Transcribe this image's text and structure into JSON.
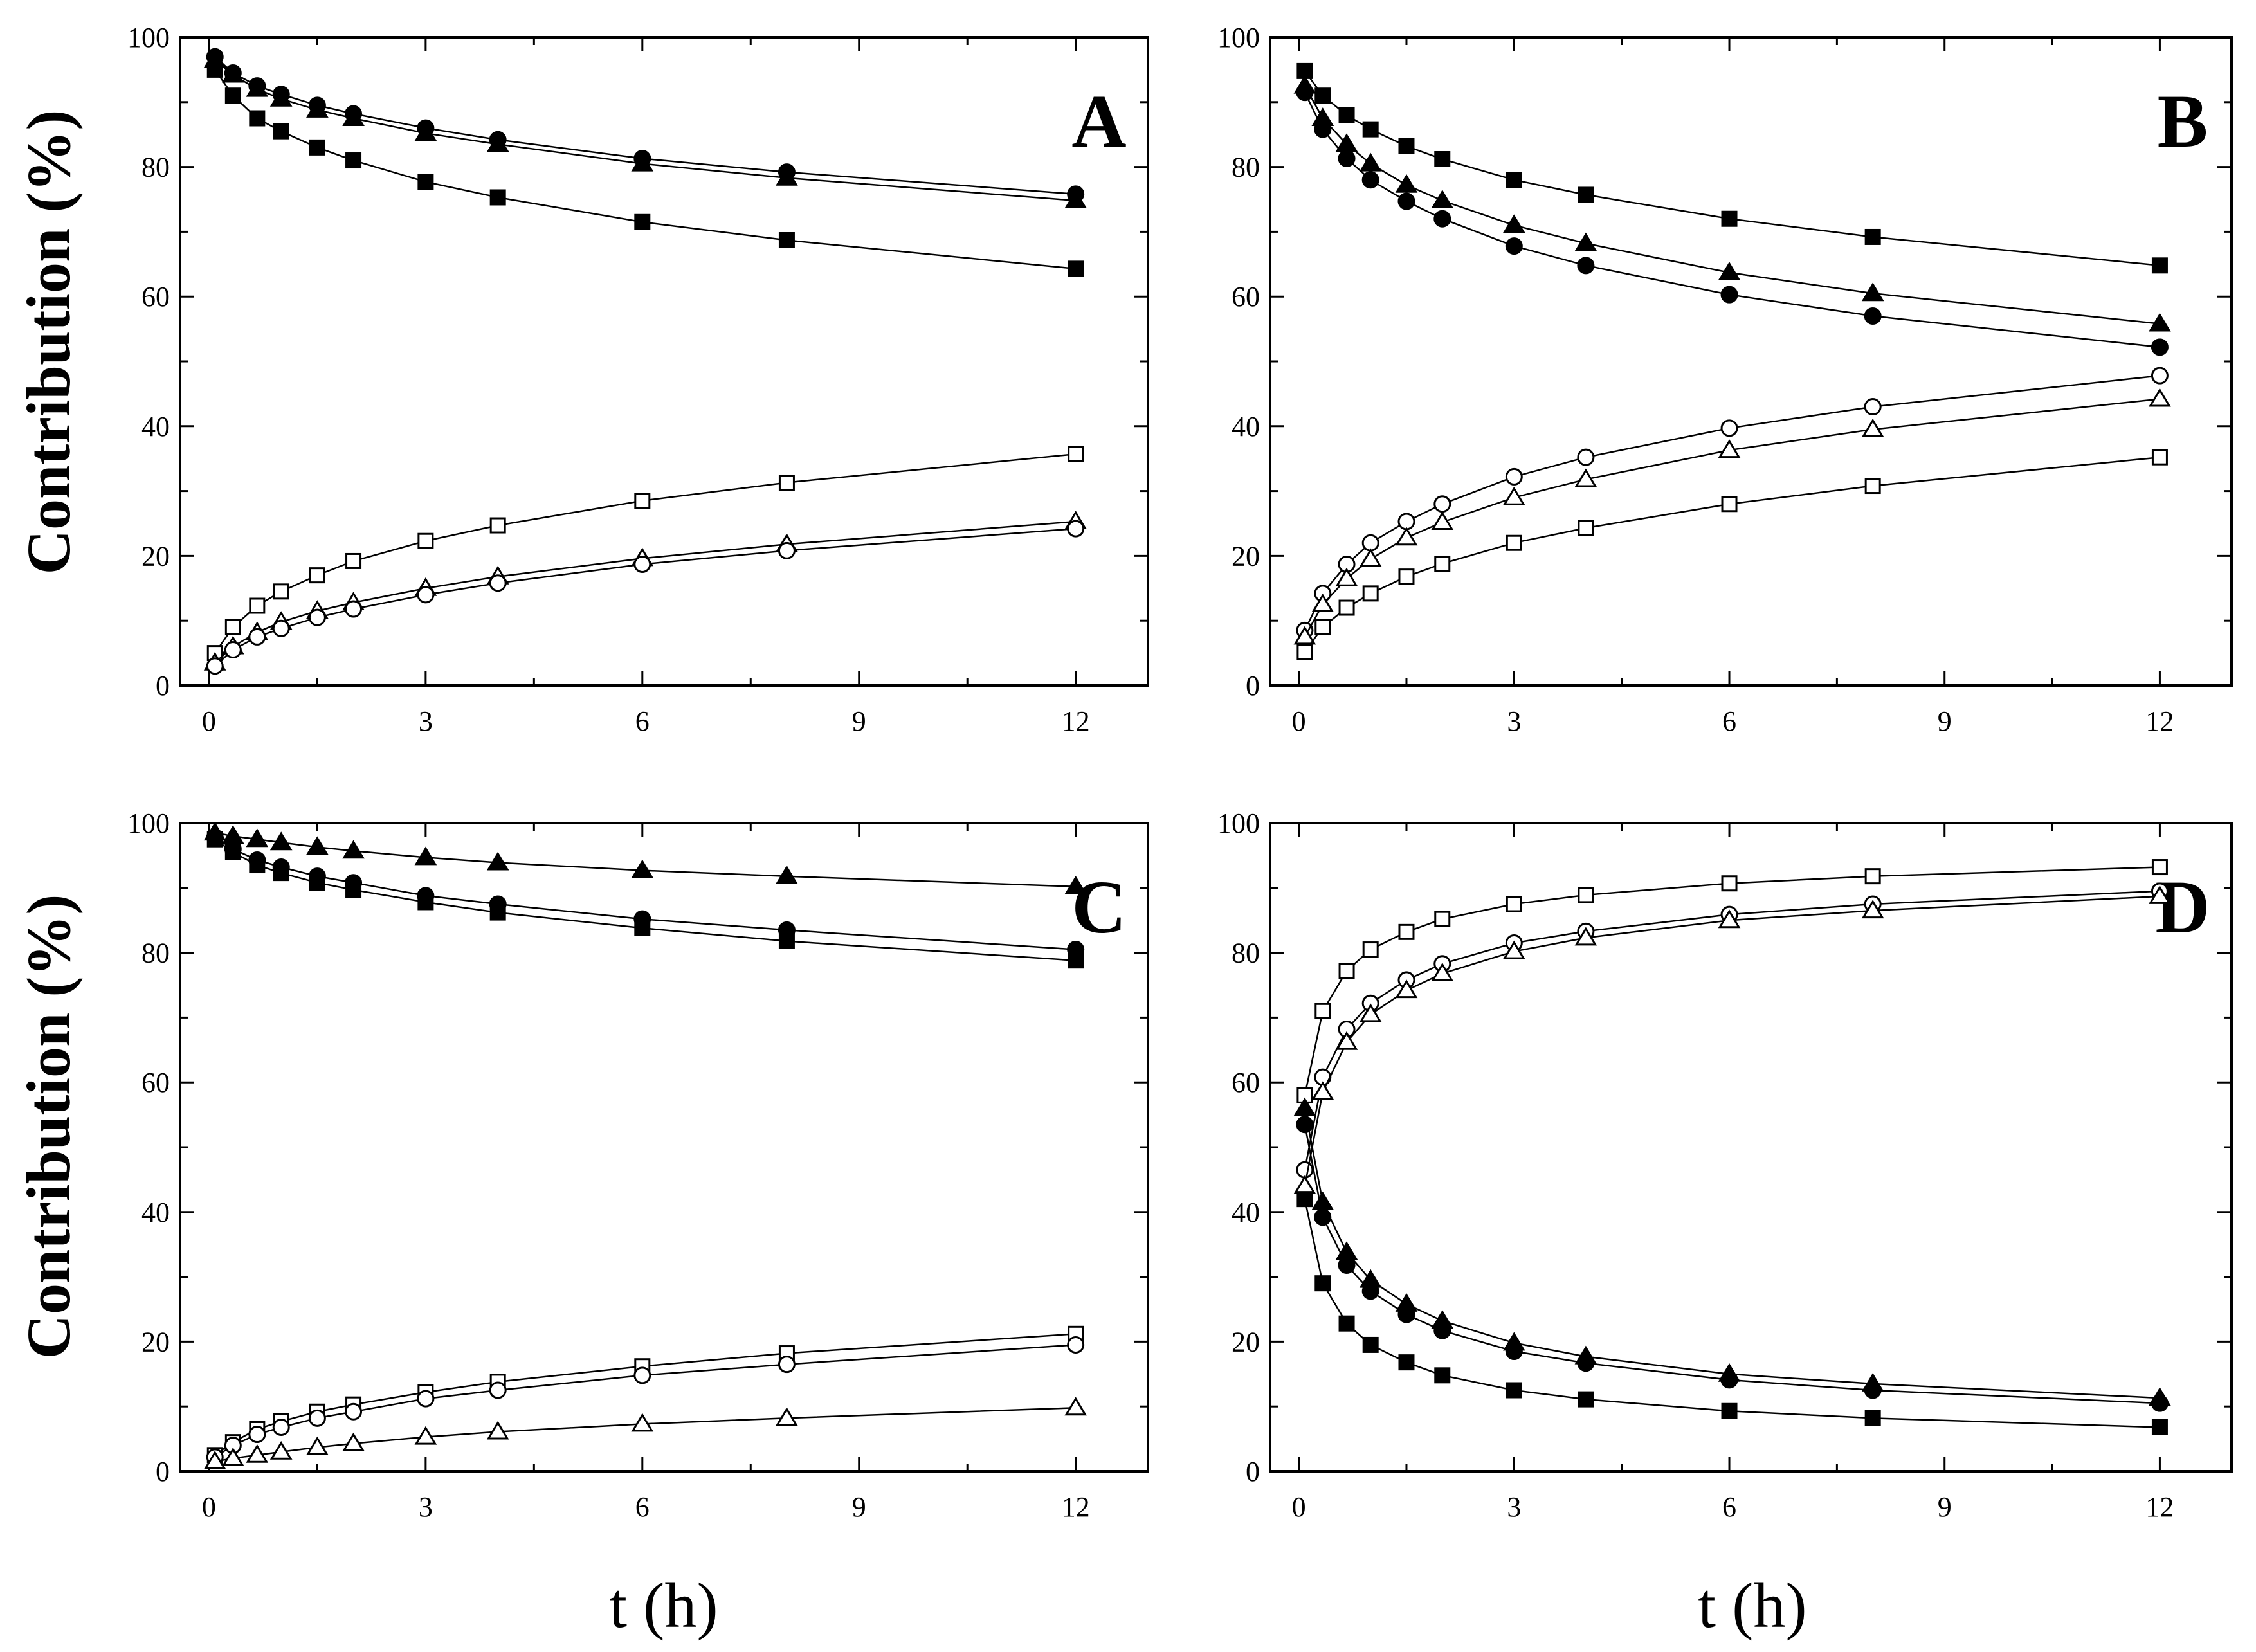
{
  "figure": {
    "ylabel": "Contribution (%)",
    "xlabel": "t (h)"
  },
  "chart_data": [
    {
      "type": "line",
      "panel": "A",
      "xlabel": "t (h)",
      "ylabel": "Contribution (%)",
      "xlim": [
        -0.4,
        13.0
      ],
      "ylim": [
        0,
        100
      ],
      "xticks": [
        0,
        3,
        6,
        9,
        12
      ],
      "yticks": [
        0,
        20,
        40,
        60,
        80,
        100
      ],
      "x": [
        0.083,
        0.333,
        0.667,
        1,
        1.5,
        2,
        3,
        4,
        6,
        8,
        12
      ],
      "series": [
        {
          "name": "filled-square",
          "marker": "square",
          "filled": true,
          "values": [
            95,
            91,
            87.5,
            85.5,
            83,
            81,
            77.7,
            75.3,
            71.5,
            68.7,
            64.3
          ]
        },
        {
          "name": "filled-circle",
          "marker": "circle",
          "filled": true,
          "values": [
            97,
            94.5,
            92.5,
            91.2,
            89.5,
            88.2,
            86,
            84.2,
            81.3,
            79.2,
            75.8
          ]
        },
        {
          "name": "filled-triangle",
          "marker": "triangle",
          "filled": true,
          "values": [
            96.5,
            94.2,
            92,
            90.5,
            88.8,
            87.5,
            85.2,
            83.5,
            80.5,
            78.3,
            74.8
          ]
        },
        {
          "name": "open-square",
          "marker": "square",
          "filled": false,
          "values": [
            5,
            9,
            12.3,
            14.5,
            17,
            19.2,
            22.3,
            24.7,
            28.5,
            31.3,
            35.7
          ]
        },
        {
          "name": "open-triangle",
          "marker": "triangle",
          "filled": false,
          "values": [
            3.5,
            6,
            8.2,
            9.8,
            11.5,
            12.8,
            15,
            16.8,
            19.6,
            21.8,
            25.3
          ]
        },
        {
          "name": "open-circle",
          "marker": "circle",
          "filled": false,
          "values": [
            3,
            5.5,
            7.5,
            8.8,
            10.5,
            11.8,
            14,
            15.8,
            18.7,
            20.8,
            24.2
          ]
        }
      ]
    },
    {
      "type": "line",
      "panel": "B",
      "xlabel": "t (h)",
      "ylabel": "Contribution (%)",
      "xlim": [
        -0.4,
        13.0
      ],
      "ylim": [
        0,
        100
      ],
      "xticks": [
        0,
        3,
        6,
        9,
        12
      ],
      "yticks": [
        0,
        20,
        40,
        60,
        80,
        100
      ],
      "x": [
        0.083,
        0.333,
        0.667,
        1,
        1.5,
        2,
        3,
        4,
        6,
        8,
        12
      ],
      "series": [
        {
          "name": "filled-square",
          "marker": "square",
          "filled": true,
          "values": [
            94.8,
            91,
            88,
            85.8,
            83.2,
            81.2,
            78,
            75.7,
            72,
            69.2,
            64.8
          ]
        },
        {
          "name": "filled-triangle",
          "marker": "triangle",
          "filled": true,
          "values": [
            92.5,
            87.5,
            83.5,
            80.5,
            77.2,
            74.8,
            71,
            68.2,
            63.7,
            60.5,
            55.8
          ]
        },
        {
          "name": "filled-circle",
          "marker": "circle",
          "filled": true,
          "values": [
            91.5,
            85.8,
            81.3,
            78,
            74.7,
            72,
            67.8,
            64.8,
            60.3,
            57,
            52.2
          ]
        },
        {
          "name": "open-circle",
          "marker": "circle",
          "filled": false,
          "values": [
            8.5,
            14.2,
            18.7,
            22,
            25.3,
            28,
            32.2,
            35.2,
            39.7,
            43,
            47.8
          ]
        },
        {
          "name": "open-triangle",
          "marker": "triangle",
          "filled": false,
          "values": [
            7.5,
            12.5,
            16.5,
            19.5,
            22.8,
            25.2,
            29,
            31.8,
            36.3,
            39.5,
            44.2
          ]
        },
        {
          "name": "open-square",
          "marker": "square",
          "filled": false,
          "values": [
            5.2,
            9,
            12,
            14.2,
            16.8,
            18.8,
            22,
            24.3,
            28,
            30.8,
            35.2
          ]
        }
      ]
    },
    {
      "type": "line",
      "panel": "C",
      "xlabel": "t (h)",
      "ylabel": "Contribution (%)",
      "xlim": [
        -0.4,
        13.0
      ],
      "ylim": [
        0,
        100
      ],
      "xticks": [
        0,
        3,
        6,
        9,
        12
      ],
      "yticks": [
        0,
        20,
        40,
        60,
        80,
        100
      ],
      "x": [
        0.083,
        0.333,
        0.667,
        1,
        1.5,
        2,
        3,
        4,
        6,
        8,
        12
      ],
      "series": [
        {
          "name": "filled-triangle",
          "marker": "triangle",
          "filled": true,
          "values": [
            98.5,
            98,
            97.5,
            97,
            96.3,
            95.7,
            94.7,
            93.9,
            92.7,
            91.8,
            90.2
          ]
        },
        {
          "name": "filled-circle",
          "marker": "circle",
          "filled": true,
          "values": [
            97.8,
            96,
            94.3,
            93.2,
            91.8,
            90.8,
            88.8,
            87.5,
            85.2,
            83.5,
            80.5
          ]
        },
        {
          "name": "filled-square",
          "marker": "square",
          "filled": true,
          "values": [
            97.5,
            95.5,
            93.5,
            92.3,
            90.8,
            89.7,
            87.8,
            86.2,
            83.8,
            81.8,
            78.8
          ]
        },
        {
          "name": "open-square",
          "marker": "square",
          "filled": false,
          "values": [
            2.5,
            4.5,
            6.5,
            7.7,
            9.2,
            10.3,
            12.2,
            13.8,
            16.2,
            18.2,
            21.2
          ]
        },
        {
          "name": "open-circle",
          "marker": "circle",
          "filled": false,
          "values": [
            2.2,
            4,
            5.7,
            6.8,
            8.2,
            9.2,
            11.2,
            12.5,
            14.8,
            16.5,
            19.5
          ]
        },
        {
          "name": "open-triangle",
          "marker": "triangle",
          "filled": false,
          "values": [
            1.5,
            2,
            2.5,
            3,
            3.7,
            4.3,
            5.3,
            6.1,
            7.3,
            8.2,
            9.8
          ]
        }
      ]
    },
    {
      "type": "line",
      "panel": "D",
      "xlabel": "t (h)",
      "ylabel": "Contribution (%)",
      "xlim": [
        -0.4,
        13.0
      ],
      "ylim": [
        0,
        100
      ],
      "xticks": [
        0,
        3,
        6,
        9,
        12
      ],
      "yticks": [
        0,
        20,
        40,
        60,
        80,
        100
      ],
      "x": [
        0.083,
        0.333,
        0.667,
        1,
        1.5,
        2,
        3,
        4,
        6,
        8,
        12
      ],
      "series": [
        {
          "name": "open-square",
          "marker": "square",
          "filled": false,
          "values": [
            58,
            71,
            77.2,
            80.5,
            83.2,
            85.2,
            87.5,
            88.9,
            90.7,
            91.8,
            93.2
          ]
        },
        {
          "name": "open-circle",
          "marker": "circle",
          "filled": false,
          "values": [
            46.5,
            60.8,
            68.2,
            72.2,
            75.8,
            78.3,
            81.5,
            83.3,
            85.9,
            87.5,
            89.5
          ]
        },
        {
          "name": "open-triangle",
          "marker": "triangle",
          "filled": false,
          "values": [
            44,
            58.5,
            66.2,
            70.5,
            74.2,
            76.8,
            80.2,
            82.3,
            85,
            86.5,
            88.7
          ]
        },
        {
          "name": "filled-triangle",
          "marker": "triangle",
          "filled": true,
          "values": [
            56,
            41.5,
            33.8,
            29.5,
            25.8,
            23.2,
            19.8,
            17.7,
            15,
            13.5,
            11.3
          ]
        },
        {
          "name": "filled-circle",
          "marker": "circle",
          "filled": true,
          "values": [
            53.5,
            39.2,
            31.8,
            27.8,
            24.2,
            21.7,
            18.5,
            16.7,
            14.1,
            12.5,
            10.5
          ]
        },
        {
          "name": "filled-square",
          "marker": "square",
          "filled": true,
          "values": [
            42,
            29,
            22.8,
            19.5,
            16.8,
            14.8,
            12.5,
            11.1,
            9.3,
            8.2,
            6.8
          ]
        }
      ]
    }
  ]
}
